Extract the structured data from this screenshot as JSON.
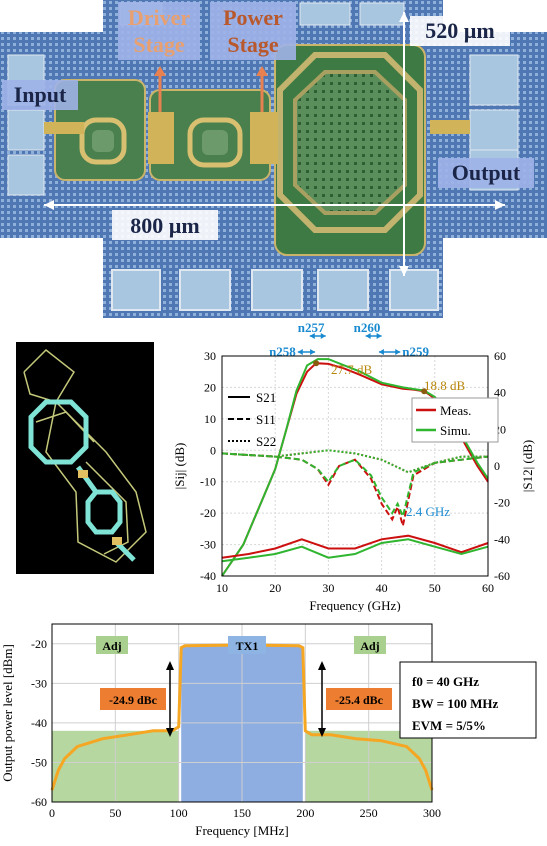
{
  "chip_photo": {
    "labels": {
      "driver_stage": [
        "Driver",
        "Stage"
      ],
      "power_stage": [
        "Power",
        "Stage"
      ],
      "input": "Input",
      "output": "Output",
      "width": "800 µm",
      "height": "520 µm"
    },
    "colors": {
      "substrate": "#4a6fa8",
      "label_bg": "#9fb2e8",
      "label_text_orange": "#e8a070",
      "metal": "#d1b35a"
    }
  },
  "layout_render": {
    "colors": {
      "background": "#000000",
      "metal": "#7fe3d6",
      "routing": "#c4c87a"
    }
  },
  "sparam_chart": {
    "band_labels": [
      "n258",
      "n257",
      "n260",
      "n259"
    ],
    "annotations": [
      "27.7 dB",
      "18.8 dB",
      "2.4 GHz"
    ],
    "legend_styles": [
      "S21",
      "S11",
      "S22"
    ],
    "legend_sources": [
      "Meas.",
      "Simu."
    ],
    "colors": {
      "meas": "#cc1010",
      "simu": "#2fb52f",
      "band": "#1a8ad0",
      "annotation": "#b8860b"
    }
  },
  "spectrum_chart": {
    "boxes": [
      "Adj",
      "TX1",
      "Adj"
    ],
    "acpr_labels": [
      "-24.9 dBc",
      "-25.4 dBc"
    ],
    "info_lines": [
      "f0 = 40 GHz",
      "BW = 100 MHz",
      "EVM = 5/5%"
    ],
    "colors": {
      "trace": "#f5a623",
      "tx_band": "#7aa0dd",
      "adj_band": "#a9d08e",
      "acpr_box": "#ed7d31",
      "tx_box": "#8db4e2",
      "adj_box": "#a9d08e"
    }
  },
  "chart_data": [
    {
      "type": "line",
      "xlabel": "Frequency (GHz)",
      "ylabel_left": "|Sij| (dB)",
      "ylabel_right": "|S12| (dB)",
      "xlim": [
        10,
        60
      ],
      "ylim_left": [
        -40,
        30
      ],
      "ylim_right": [
        -60,
        60
      ],
      "x_ticks": [
        10,
        20,
        30,
        40,
        50,
        60
      ],
      "y_ticks_left": [
        -40,
        -30,
        -20,
        -10,
        0,
        10,
        20,
        30
      ],
      "y_ticks_right": [
        -60,
        -40,
        -20,
        0,
        20,
        40,
        60
      ],
      "series": [
        {
          "name": "Meas.",
          "param": "S21",
          "x": [
            10,
            14,
            18,
            20,
            22,
            24,
            26,
            27.7,
            30,
            33,
            36,
            40,
            44,
            46,
            48,
            50,
            52,
            55,
            58,
            60
          ],
          "y": [
            -40,
            -30,
            -14,
            -6,
            6,
            18,
            25,
            27.7,
            27.5,
            26,
            24,
            21,
            19.6,
            19.3,
            18.8,
            16.5,
            12,
            4,
            -5,
            -10
          ]
        },
        {
          "name": "Simu.",
          "param": "S21",
          "x": [
            10,
            14,
            18,
            20,
            22,
            24,
            26,
            28,
            30,
            33,
            36,
            40,
            44,
            46,
            48,
            50,
            52,
            55,
            58,
            60
          ],
          "y": [
            -40,
            -30,
            -14,
            -6,
            6,
            19,
            27,
            29,
            29,
            27,
            25,
            21.5,
            20,
            19.5,
            19,
            17,
            13,
            5,
            -4,
            -9
          ]
        },
        {
          "name": "Meas.",
          "param": "S11",
          "x": [
            10,
            15,
            20,
            25,
            28,
            30,
            32,
            35,
            38,
            40,
            42,
            43,
            44,
            46,
            50,
            55,
            60
          ],
          "y": [
            -1,
            -1.5,
            -2,
            -3,
            -6,
            -11,
            -5,
            -3,
            -9,
            -17,
            -22,
            -18,
            -24,
            -8,
            -4,
            -3,
            -2
          ]
        },
        {
          "name": "Simu.",
          "param": "S11",
          "x": [
            10,
            15,
            20,
            25,
            28,
            30,
            32,
            35,
            38,
            40,
            42,
            43,
            44,
            46,
            50,
            55,
            60
          ],
          "y": [
            -1,
            -1.5,
            -2,
            -3,
            -6,
            -10,
            -5,
            -3,
            -8,
            -15,
            -20,
            -17,
            -21,
            -7,
            -4,
            -3,
            -2
          ]
        },
        {
          "name": "Meas.",
          "param": "S22",
          "x": [
            10,
            15,
            20,
            25,
            30,
            35,
            40,
            45,
            50,
            55,
            60
          ],
          "y": [
            -1,
            -1.5,
            -2,
            -1,
            0,
            -1,
            -3,
            -7,
            -4,
            -2,
            -2
          ]
        },
        {
          "name": "Simu.",
          "param": "S22",
          "x": [
            10,
            15,
            20,
            25,
            30,
            35,
            40,
            45,
            50,
            55,
            60
          ],
          "y": [
            -1,
            -1.5,
            -2,
            -1,
            0,
            -1,
            -3,
            -7,
            -4,
            -2,
            -2
          ]
        },
        {
          "name": "Meas.",
          "param": "S12",
          "x": [
            10,
            15,
            20,
            25,
            30,
            35,
            40,
            45,
            50,
            55,
            60
          ],
          "y": [
            -50,
            -48,
            -45,
            -40,
            -45,
            -45,
            -40,
            -38,
            -42,
            -47,
            -42
          ]
        },
        {
          "name": "Simu.",
          "param": "S12",
          "x": [
            10,
            15,
            20,
            25,
            30,
            35,
            40,
            45,
            50,
            55,
            60
          ],
          "y": [
            -52,
            -50,
            -48,
            -44,
            -50,
            -48,
            -42,
            -40,
            -44,
            -48,
            -44
          ]
        }
      ],
      "bands": [
        {
          "name": "n258",
          "x": [
            24.25,
            27.5
          ]
        },
        {
          "name": "n257",
          "x": [
            26.5,
            29.5
          ]
        },
        {
          "name": "n260",
          "x": [
            37,
            40
          ]
        },
        {
          "name": "n259",
          "x": [
            39.5,
            43.5
          ]
        }
      ]
    },
    {
      "type": "line",
      "xlabel": "Frequency [MHz]",
      "ylabel": "Output power level [dBm]",
      "xlim": [
        0,
        300
      ],
      "ylim": [
        -60,
        -15
      ],
      "x_ticks": [
        0,
        50,
        100,
        150,
        200,
        250,
        300
      ],
      "y_ticks": [
        -60,
        -50,
        -40,
        -30,
        -20
      ],
      "x": [
        0,
        5,
        10,
        20,
        40,
        60,
        80,
        95,
        100,
        102,
        105,
        150,
        195,
        198,
        200,
        205,
        220,
        240,
        260,
        280,
        290,
        295,
        300
      ],
      "y": [
        -57,
        -52,
        -49,
        -46,
        -44,
        -43,
        -42,
        -42,
        -41,
        -21,
        -20.5,
        -20.3,
        -20.5,
        -21,
        -42,
        -43,
        -43,
        -44,
        -44.5,
        -46,
        -49,
        -52,
        -57
      ],
      "shaded_regions": [
        {
          "name": "Adj",
          "x": [
            0,
            100
          ],
          "ylevel": -42
        },
        {
          "name": "TX1",
          "x": [
            102,
            198
          ],
          "ylevel": -20.5
        },
        {
          "name": "Adj",
          "x": [
            200,
            300
          ],
          "ylevel": -42
        }
      ]
    }
  ]
}
